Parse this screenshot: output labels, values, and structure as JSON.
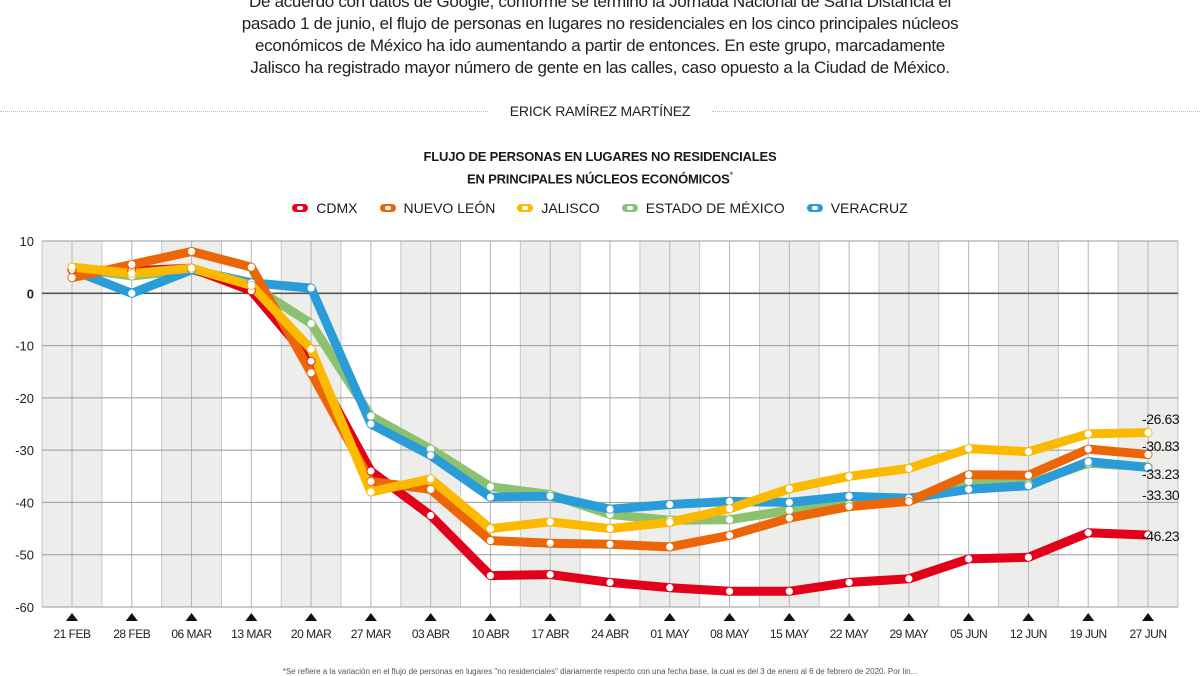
{
  "intro": {
    "lines": [
      "De acuerdo con datos de Google, conforme se terminó la Jornada Nacional de Sana Distancia el",
      "pasado 1 de junio, el flujo de personas en lugares no residenciales en los cinco principales núcleos",
      "económicos de México ha ido aumentando a partir de entonces. En este grupo, marcadamente",
      "Jalisco ha registrado mayor número de gente en las calles, caso opuesto a la Ciudad de México."
    ]
  },
  "byline": "ERICK RAMÍREZ MARTÍNEZ",
  "footnote": "*Se refiere a la variación en el flujo de personas en lugares \"no residenciales\" diariamente respecto con una fecha base, la cual es del 3 de enero al 6 de febrero de 2020. Por lin...",
  "chart_data": {
    "type": "line",
    "title": "FLUJO DE PERSONAS EN LUGARES NO RESIDENCIALES",
    "subtitle": "EN PRINCIPALES NÚCLEOS ECONÓMICOS",
    "title_mark": "*",
    "xlabel": "",
    "ylabel": "",
    "ylim": [
      -60,
      10
    ],
    "yticks": [
      10,
      0,
      -10,
      -20,
      -30,
      -40,
      -50,
      -60
    ],
    "grid": true,
    "legend_position": "top-center",
    "categories": [
      "21 FEB",
      "28 FEB",
      "06 MAR",
      "13 MAR",
      "20 MAR",
      "27 MAR",
      "03 ABR",
      "10 ABR",
      "17 ABR",
      "24 ABR",
      "01 MAY",
      "08 MAY",
      "15 MAY",
      "22 MAY",
      "29 MAY",
      "05 JUN",
      "12 JUN",
      "19 JUN",
      "27 JUN"
    ],
    "series": [
      {
        "name": "CDMX",
        "color": "#e2001a",
        "values": [
          4.5,
          4.3,
          4.8,
          0.5,
          -13.0,
          -34.0,
          -42.5,
          -54.0,
          -53.8,
          -55.3,
          -56.3,
          -57.0,
          -57.0,
          -55.3,
          -54.6,
          -50.8,
          -50.5,
          -45.8,
          -46.23
        ],
        "end_label": "-46.23"
      },
      {
        "name": "NUEVO LEÓN",
        "color": "#ec6608",
        "values": [
          3.0,
          5.5,
          8.0,
          5.0,
          -15.2,
          -36.0,
          -37.5,
          -47.3,
          -47.8,
          -48.0,
          -48.5,
          -46.3,
          -43.0,
          -40.8,
          -39.8,
          -34.7,
          -34.8,
          -29.8,
          -30.83
        ],
        "end_label": "-30.83"
      },
      {
        "name": "JALISCO",
        "color": "#fbb900",
        "values": [
          5.0,
          3.8,
          4.8,
          1.5,
          -10.7,
          -38.0,
          -35.5,
          -45.0,
          -43.7,
          -45.0,
          -43.8,
          -41.2,
          -37.4,
          -35.0,
          -33.5,
          -29.7,
          -30.3,
          -26.9,
          -26.63
        ],
        "end_label": "-26.63"
      },
      {
        "name": "ESTADO DE MÉXICO",
        "color": "#8cc170",
        "values": [
          4.8,
          3.3,
          4.5,
          1.5,
          -5.8,
          -23.5,
          -29.8,
          -37.0,
          -38.5,
          -42.3,
          -43.4,
          -43.3,
          -41.5,
          -40.4,
          -39.8,
          -36.0,
          -36.5,
          -32.5,
          -33.23
        ],
        "end_label": "-33.23"
      },
      {
        "name": "VERACRUZ",
        "color": "#2a9cd8",
        "values": [
          4.5,
          0.0,
          4.5,
          2.0,
          1.0,
          -25.0,
          -31.0,
          -39.0,
          -38.8,
          -41.3,
          -40.4,
          -39.8,
          -40.0,
          -38.8,
          -39.2,
          -37.5,
          -36.8,
          -32.2,
          -33.3
        ],
        "end_label": "-33.30"
      }
    ]
  }
}
